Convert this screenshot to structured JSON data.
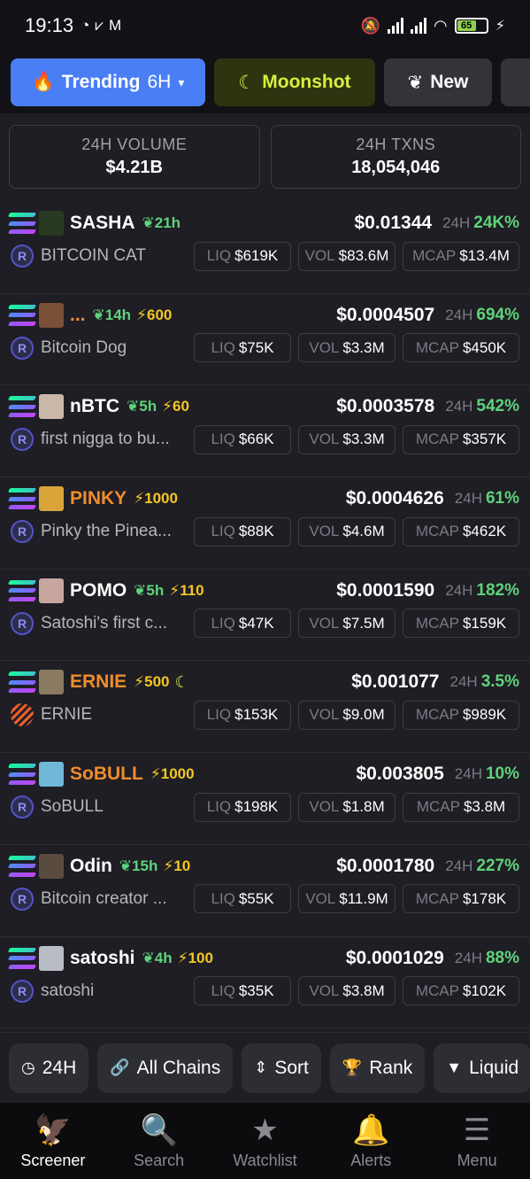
{
  "status_bar": {
    "time": "19:13",
    "battery": "65"
  },
  "tabs": {
    "trending": {
      "label": "Trending",
      "timeframe": "6H"
    },
    "moonshot": {
      "label": "Moonshot"
    },
    "new": {
      "label": "New"
    }
  },
  "stats": {
    "volume": {
      "label": "24H VOLUME",
      "value": "$4.21B"
    },
    "txns": {
      "label": "24H TXNS",
      "value": "18,054,046"
    }
  },
  "rows": [
    {
      "symbol": "SASHA",
      "symbol_color": "#ffffff",
      "age": "21h",
      "boost": "",
      "moon": false,
      "price": "$0.01344",
      "chg_label": "24H",
      "chg": "24K%",
      "name": "BITCOIN CAT",
      "dex": "raydium",
      "liq_label": "LIQ",
      "liq": "$619K",
      "vol_label": "VOL",
      "vol": "$83.6M",
      "mcap_label": "MCAP",
      "mcap": "$13.4M",
      "img": "#2a3a22"
    },
    {
      "symbol": "...",
      "symbol_color": "#f08c2b",
      "age": "14h",
      "boost": "600",
      "moon": false,
      "price": "$0.0004507",
      "chg_label": "24H",
      "chg": "694%",
      "name": "Bitcoin Dog",
      "dex": "raydium",
      "liq_label": "LIQ",
      "liq": "$75K",
      "vol_label": "VOL",
      "vol": "$3.3M",
      "mcap_label": "MCAP",
      "mcap": "$450K",
      "img": "#7a5038"
    },
    {
      "symbol": "nBTC",
      "symbol_color": "#ffffff",
      "age": "5h",
      "boost": "60",
      "moon": false,
      "price": "$0.0003578",
      "chg_label": "24H",
      "chg": "542%",
      "name": "first nigga to bu...",
      "dex": "raydium",
      "liq_label": "LIQ",
      "liq": "$66K",
      "vol_label": "VOL",
      "vol": "$3.3M",
      "mcap_label": "MCAP",
      "mcap": "$357K",
      "img": "#c9b7a8"
    },
    {
      "symbol": "PINKY",
      "symbol_color": "#f08c2b",
      "age": "",
      "boost": "1000",
      "moon": false,
      "price": "$0.0004626",
      "chg_label": "24H",
      "chg": "61%",
      "name": "Pinky the Pinea...",
      "dex": "raydium",
      "liq_label": "LIQ",
      "liq": "$88K",
      "vol_label": "VOL",
      "vol": "$4.6M",
      "mcap_label": "MCAP",
      "mcap": "$462K",
      "img": "#d9a53a"
    },
    {
      "symbol": "POMO",
      "symbol_color": "#ffffff",
      "age": "5h",
      "boost": "110",
      "moon": false,
      "price": "$0.0001590",
      "chg_label": "24H",
      "chg": "182%",
      "name": "Satoshi's first c...",
      "dex": "raydium",
      "liq_label": "LIQ",
      "liq": "$47K",
      "vol_label": "VOL",
      "vol": "$7.5M",
      "mcap_label": "MCAP",
      "mcap": "$159K",
      "img": "#c8a6a0"
    },
    {
      "symbol": "ERNIE",
      "symbol_color": "#f08c2b",
      "age": "",
      "boost": "500",
      "moon": true,
      "price": "$0.001077",
      "chg_label": "24H",
      "chg": "3.5%",
      "name": "ERNIE",
      "dex": "stripes",
      "liq_label": "LIQ",
      "liq": "$153K",
      "vol_label": "VOL",
      "vol": "$9.0M",
      "mcap_label": "MCAP",
      "mcap": "$989K",
      "img": "#8a7a60"
    },
    {
      "symbol": "SoBULL",
      "symbol_color": "#f08c2b",
      "age": "",
      "boost": "1000",
      "moon": false,
      "price": "$0.003805",
      "chg_label": "24H",
      "chg": "10%",
      "name": "SoBULL",
      "dex": "raydium",
      "liq_label": "LIQ",
      "liq": "$198K",
      "vol_label": "VOL",
      "vol": "$1.8M",
      "mcap_label": "MCAP",
      "mcap": "$3.8M",
      "img": "#6fb8d8"
    },
    {
      "symbol": "Odin",
      "symbol_color": "#ffffff",
      "age": "15h",
      "boost": "10",
      "moon": false,
      "price": "$0.0001780",
      "chg_label": "24H",
      "chg": "227%",
      "name": "Bitcoin creator ...",
      "dex": "raydium",
      "liq_label": "LIQ",
      "liq": "$55K",
      "vol_label": "VOL",
      "vol": "$11.9M",
      "mcap_label": "MCAP",
      "mcap": "$178K",
      "img": "#5a4a40"
    },
    {
      "symbol": "satoshi",
      "symbol_color": "#ffffff",
      "age": "4h",
      "boost": "100",
      "moon": false,
      "price": "$0.0001029",
      "chg_label": "24H",
      "chg": "88%",
      "name": "satoshi",
      "dex": "raydium",
      "liq_label": "LIQ",
      "liq": "$35K",
      "vol_label": "VOL",
      "vol": "$3.8M",
      "mcap_label": "MCAP",
      "mcap": "$102K",
      "img": "#b8bcc4"
    }
  ],
  "filters": [
    {
      "label": "24H",
      "icon": "clock-icon",
      "glyph": "◷"
    },
    {
      "label": "All Chains",
      "icon": "link-icon",
      "glyph": "🔗"
    },
    {
      "label": "Sort",
      "icon": "sort-icon",
      "glyph": "⇕"
    },
    {
      "label": "Rank",
      "icon": "trophy-icon",
      "glyph": "🏆"
    },
    {
      "label": "Liquid",
      "icon": "filter-icon",
      "glyph": "▼"
    }
  ],
  "nav": [
    {
      "label": "Screener",
      "icon": "eagle-icon",
      "glyph": "🦅",
      "active": true
    },
    {
      "label": "Search",
      "icon": "search-icon",
      "glyph": "🔍",
      "active": false
    },
    {
      "label": "Watchlist",
      "icon": "star-icon",
      "glyph": "★",
      "active": false
    },
    {
      "label": "Alerts",
      "icon": "bell-icon",
      "glyph": "🔔",
      "active": false
    },
    {
      "label": "Menu",
      "icon": "menu-icon",
      "glyph": "☰",
      "active": false
    }
  ]
}
